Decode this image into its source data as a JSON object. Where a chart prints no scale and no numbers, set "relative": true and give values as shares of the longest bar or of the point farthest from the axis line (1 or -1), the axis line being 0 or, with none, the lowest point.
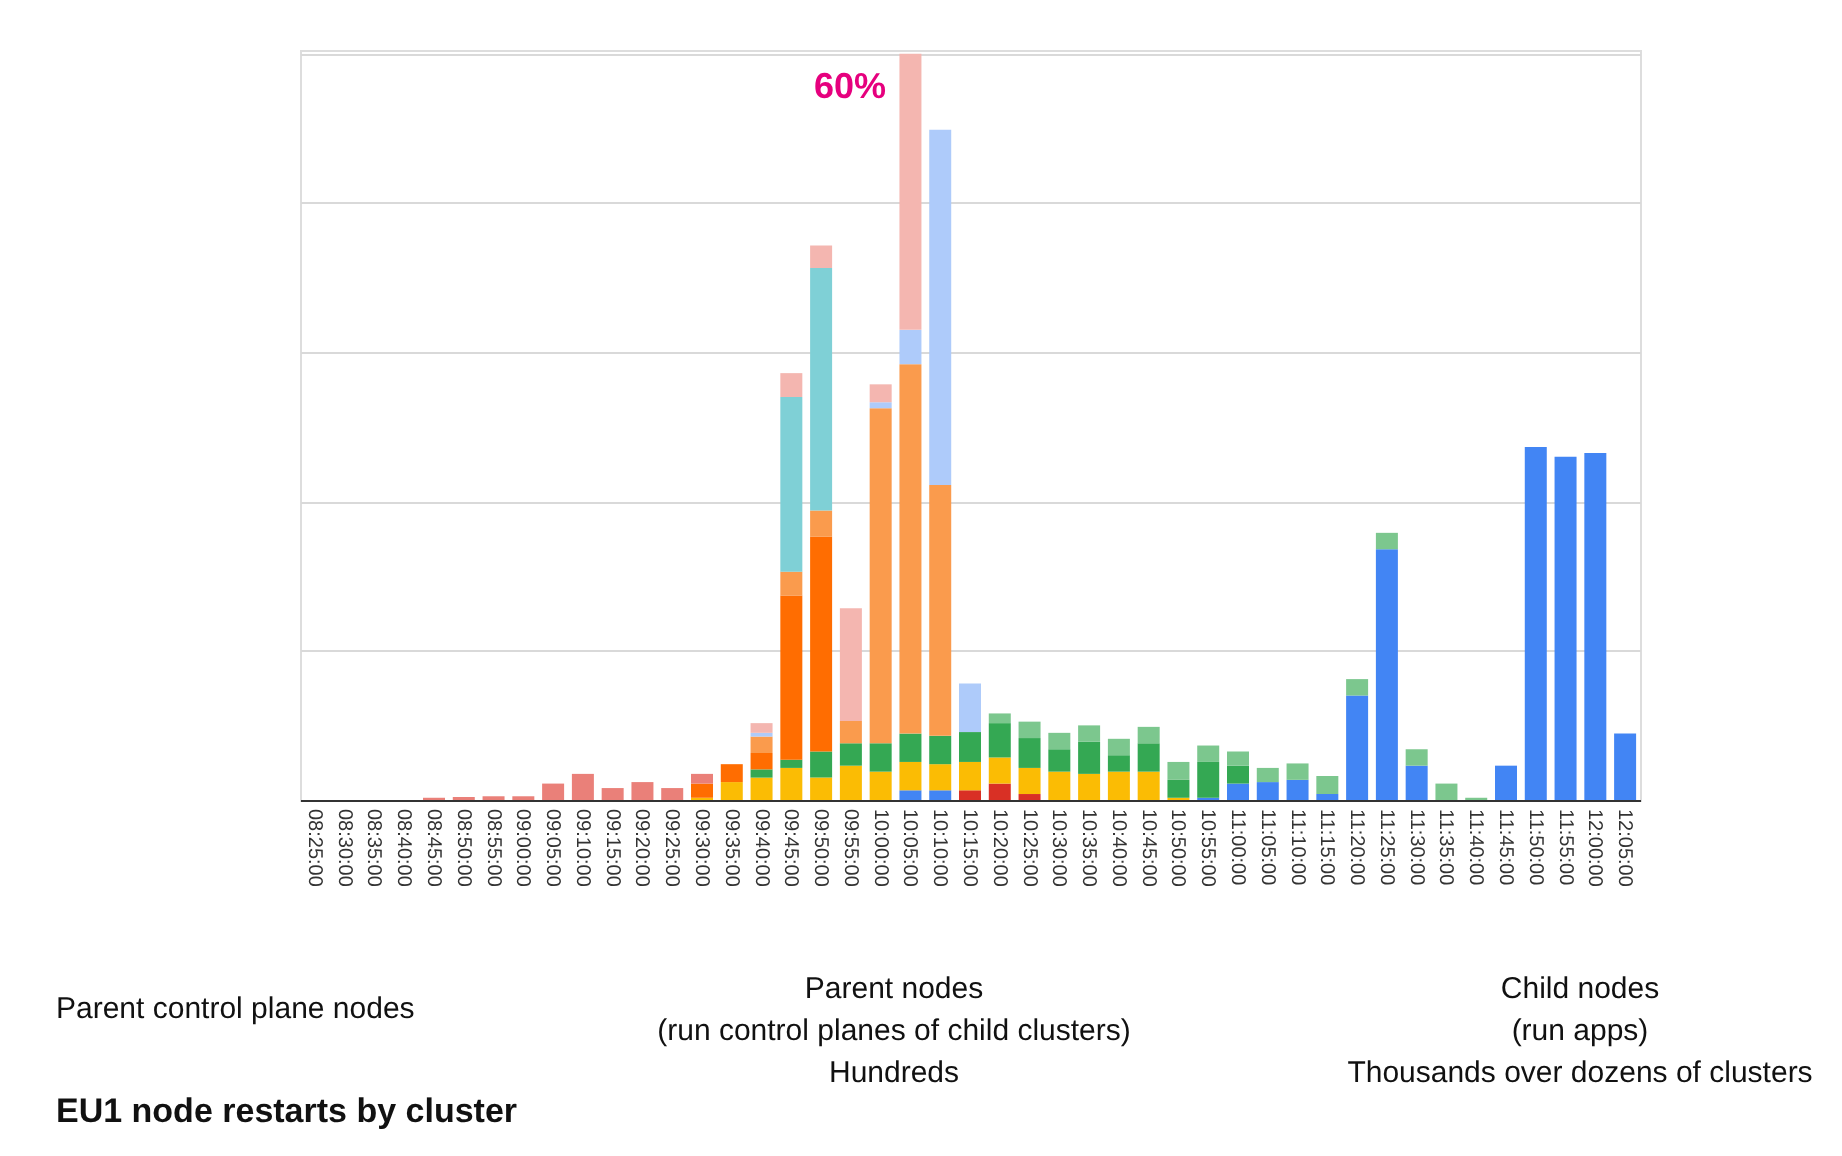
{
  "chart_data": {
    "type": "bar",
    "stacked": true,
    "relative": true,
    "grid": "y",
    "legend": false,
    "title": "EU1 node restarts by cluster",
    "categories": [
      "08:25:00",
      "08:30:00",
      "08:35:00",
      "08:40:00",
      "08:45:00",
      "08:50:00",
      "08:55:00",
      "09:00:00",
      "09:05:00",
      "09:10:00",
      "09:15:00",
      "09:20:00",
      "09:25:00",
      "09:30:00",
      "09:35:00",
      "09:40:00",
      "09:45:00",
      "09:50:00",
      "09:55:00",
      "10:00:00",
      "10:05:00",
      "10:10:00",
      "10:15:00",
      "10:20:00",
      "10:25:00",
      "10:30:00",
      "10:35:00",
      "10:40:00",
      "10:45:00",
      "10:50:00",
      "10:55:00",
      "11:00:00",
      "11:05:00",
      "11:10:00",
      "11:15:00",
      "11:20:00",
      "11:25:00",
      "11:30:00",
      "11:35:00",
      "11:40:00",
      "11:45:00",
      "11:50:00",
      "11:55:00",
      "12:00:00",
      "12:05:00"
    ],
    "series": [
      {
        "color": "#d93025",
        "values": [
          null,
          null,
          null,
          null,
          null,
          null,
          null,
          null,
          null,
          null,
          null,
          null,
          null,
          null,
          null,
          null,
          null,
          null,
          null,
          null,
          null,
          null,
          0.013,
          0.022,
          0.008,
          null,
          null,
          null,
          null,
          null,
          null,
          null,
          null,
          null,
          null,
          null,
          null,
          null,
          null,
          null,
          null,
          null,
          null,
          null,
          null
        ]
      },
      {
        "color": "#4285f4",
        "values": [
          null,
          null,
          null,
          null,
          null,
          null,
          null,
          null,
          null,
          null,
          null,
          null,
          null,
          null,
          null,
          null,
          null,
          null,
          null,
          null,
          0.013,
          0.013,
          null,
          null,
          null,
          null,
          null,
          null,
          null,
          null,
          0.003,
          0.022,
          0.024,
          0.027,
          0.008,
          0.14,
          0.336,
          0.046,
          null,
          null,
          0.046,
          0.473,
          0.46,
          0.465,
          0.089
        ]
      },
      {
        "color": "#fbbc04",
        "values": [
          null,
          null,
          null,
          null,
          null,
          null,
          null,
          null,
          null,
          null,
          null,
          null,
          null,
          0.003,
          0.024,
          0.03,
          0.043,
          0.03,
          0.046,
          0.038,
          0.038,
          0.035,
          0.038,
          0.035,
          0.035,
          0.038,
          0.035,
          0.038,
          0.038,
          0.003,
          null,
          null,
          null,
          null,
          null,
          null,
          null,
          null,
          null,
          null,
          null,
          null,
          null,
          null,
          null
        ]
      },
      {
        "color": "#34a853",
        "values": [
          null,
          null,
          null,
          null,
          null,
          null,
          null,
          null,
          null,
          null,
          null,
          null,
          null,
          null,
          null,
          0.011,
          0.011,
          0.035,
          0.03,
          0.038,
          0.038,
          0.038,
          0.04,
          0.046,
          0.04,
          0.03,
          0.043,
          0.022,
          0.038,
          0.024,
          0.048,
          0.024,
          null,
          null,
          null,
          null,
          null,
          null,
          null,
          null,
          null,
          null,
          null,
          null,
          null
        ]
      },
      {
        "color": "#ff6d01",
        "values": [
          null,
          null,
          null,
          null,
          null,
          null,
          null,
          null,
          null,
          null,
          null,
          null,
          null,
          0.019,
          0.024,
          0.022,
          0.22,
          0.288,
          null,
          null,
          null,
          null,
          null,
          null,
          null,
          null,
          null,
          null,
          null,
          null,
          null,
          null,
          null,
          null,
          null,
          null,
          null,
          null,
          null,
          null,
          null,
          null,
          null,
          null,
          null
        ]
      },
      {
        "color": "#fa9b4d",
        "values": [
          null,
          null,
          null,
          null,
          null,
          null,
          null,
          null,
          null,
          null,
          null,
          null,
          null,
          null,
          null,
          0.022,
          0.032,
          0.035,
          0.03,
          0.449,
          0.495,
          0.336,
          null,
          null,
          null,
          null,
          null,
          null,
          null,
          null,
          null,
          null,
          null,
          null,
          null,
          null,
          null,
          null,
          null,
          null,
          null,
          null,
          null,
          null,
          null
        ]
      },
      {
        "color": "#7fd0d6",
        "values": [
          null,
          null,
          null,
          null,
          null,
          null,
          null,
          null,
          null,
          null,
          null,
          null,
          null,
          null,
          null,
          null,
          0.234,
          0.325,
          null,
          null,
          null,
          null,
          null,
          null,
          null,
          null,
          null,
          null,
          null,
          null,
          null,
          null,
          null,
          null,
          null,
          null,
          null,
          null,
          null,
          null,
          null,
          null,
          null,
          null,
          null
        ]
      },
      {
        "color": "#aecbfa",
        "values": [
          null,
          null,
          null,
          null,
          null,
          null,
          null,
          null,
          null,
          null,
          null,
          null,
          null,
          null,
          null,
          0.005,
          null,
          null,
          null,
          0.008,
          0.046,
          0.476,
          0.065,
          null,
          null,
          null,
          null,
          null,
          null,
          null,
          null,
          null,
          null,
          null,
          null,
          null,
          null,
          null,
          null,
          null,
          null,
          null,
          null,
          null,
          null
        ]
      },
      {
        "color": "#f4b6b0",
        "values": [
          null,
          null,
          null,
          null,
          null,
          null,
          null,
          null,
          null,
          null,
          null,
          null,
          null,
          null,
          null,
          0.013,
          0.032,
          0.03,
          0.151,
          0.024,
          0.37,
          null,
          null,
          null,
          null,
          null,
          null,
          null,
          null,
          null,
          null,
          null,
          null,
          null,
          null,
          null,
          null,
          null,
          null,
          null,
          null,
          null,
          null,
          null,
          null
        ]
      },
      {
        "color": "#7cc78e",
        "values": [
          null,
          null,
          null,
          null,
          null,
          null,
          null,
          null,
          null,
          null,
          null,
          null,
          null,
          null,
          null,
          null,
          null,
          null,
          null,
          null,
          null,
          null,
          null,
          0.013,
          0.022,
          0.022,
          0.022,
          0.022,
          0.022,
          0.024,
          0.022,
          0.019,
          0.019,
          0.022,
          0.024,
          0.022,
          0.022,
          0.022,
          0.022,
          0.003,
          null,
          null,
          null,
          null,
          null
        ]
      },
      {
        "color": "#ea8079",
        "values": [
          null,
          null,
          null,
          null,
          0.003,
          0.004,
          0.005,
          0.005,
          0.022,
          0.035,
          0.016,
          0.024,
          0.016,
          0.013,
          null,
          null,
          null,
          null,
          null,
          null,
          null,
          null,
          null,
          null,
          null,
          null,
          null,
          null,
          null,
          null,
          null,
          null,
          null,
          null,
          null,
          null,
          null,
          null,
          null,
          null,
          null,
          null,
          null,
          null,
          null
        ]
      }
    ],
    "annotations": [
      "60%",
      "Parent control plane nodes",
      "Parent nodes\n(run control planes of child clusters)\nHundreds",
      "Child nodes\n(run apps)\nThousands over dozens of clusters"
    ]
  }
}
